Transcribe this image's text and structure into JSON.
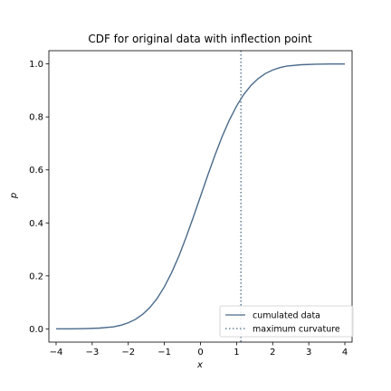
{
  "chart_data": {
    "type": "line",
    "title": "CDF for original data with inflection point",
    "xlabel": "x",
    "ylabel": "p",
    "xlim": [
      -4.2,
      4.2
    ],
    "ylim": [
      -0.05,
      1.05
    ],
    "x_ticks": [
      -4,
      -3,
      -2,
      -1,
      0,
      1,
      2,
      3,
      4
    ],
    "x_tick_labels": [
      "−4",
      "−3",
      "−2",
      "−1",
      "0",
      "1",
      "2",
      "3",
      "4"
    ],
    "y_ticks": [
      0.0,
      0.2,
      0.4,
      0.6,
      0.8,
      1.0
    ],
    "y_tick_labels": [
      "0.0",
      "0.2",
      "0.4",
      "0.6",
      "0.8",
      "1.0"
    ],
    "grid": false,
    "legend_position": "lower-right",
    "series": [
      {
        "name": "cumulated data",
        "color": "#4a6a8a",
        "style": "solid",
        "x": [
          -4.0,
          -3.6,
          -3.2,
          -2.8,
          -2.4,
          -2.2,
          -2.0,
          -1.8,
          -1.6,
          -1.4,
          -1.2,
          -1.0,
          -0.8,
          -0.6,
          -0.4,
          -0.2,
          0.0,
          0.2,
          0.4,
          0.6,
          0.8,
          1.0,
          1.2,
          1.4,
          1.6,
          1.8,
          2.0,
          2.2,
          2.4,
          2.8,
          3.2,
          3.6,
          4.0
        ],
        "y": [
          0.0,
          0.0,
          0.001,
          0.003,
          0.008,
          0.014,
          0.023,
          0.036,
          0.055,
          0.081,
          0.115,
          0.159,
          0.212,
          0.274,
          0.345,
          0.421,
          0.5,
          0.579,
          0.655,
          0.726,
          0.788,
          0.841,
          0.885,
          0.919,
          0.945,
          0.964,
          0.977,
          0.986,
          0.992,
          0.997,
          0.999,
          1.0,
          1.0
        ]
      }
    ],
    "vline": {
      "name": "maximum curvature",
      "x": 1.12,
      "color": "#4a6a8a",
      "style": "dotted"
    }
  }
}
